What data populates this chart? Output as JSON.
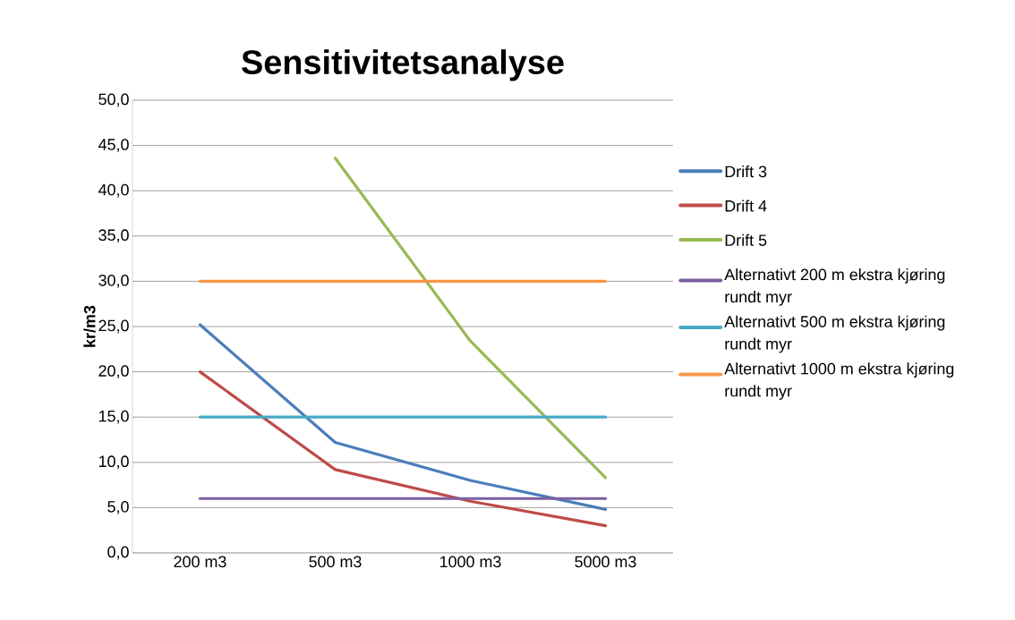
{
  "chart_data": {
    "type": "line",
    "title": "Sensitivitetsanalyse",
    "ylabel": "kr/m3",
    "categories": [
      "200 m3",
      "500 m3",
      "1000 m3",
      "5000 m3"
    ],
    "series": [
      {
        "name": "Drift 3",
        "color": "#4a7ebb",
        "values": [
          25.2,
          12.2,
          8.0,
          4.8
        ]
      },
      {
        "name": "Drift 4",
        "color": "#be4b48",
        "values": [
          20.0,
          9.2,
          5.7,
          3.0
        ]
      },
      {
        "name": "Drift 5",
        "color": "#98b954",
        "values": [
          null,
          43.6,
          23.4,
          8.3
        ]
      },
      {
        "name": "Alternativt 200 m ekstra kjøring rundt myr",
        "color": "#7d5fa0",
        "values": [
          6.0,
          6.0,
          6.0,
          6.0
        ]
      },
      {
        "name": "Alternativt 500 m ekstra kjøring rundt myr",
        "color": "#46aac5",
        "values": [
          15.0,
          15.0,
          15.0,
          15.0
        ]
      },
      {
        "name": "Alternativt 1000 m ekstra kjøring rundt myr",
        "color": "#f79646",
        "values": [
          30.0,
          30.0,
          30.0,
          30.0
        ]
      }
    ],
    "ylim": [
      0,
      50
    ],
    "yticks": [
      {
        "value": 0,
        "label": "0,0"
      },
      {
        "value": 5,
        "label": "5,0"
      },
      {
        "value": 10,
        "label": "10,0"
      },
      {
        "value": 15,
        "label": "15,0"
      },
      {
        "value": 20,
        "label": "20,0"
      },
      {
        "value": 25,
        "label": "25,0"
      },
      {
        "value": 30,
        "label": "30,0"
      },
      {
        "value": 35,
        "label": "35,0"
      },
      {
        "value": 40,
        "label": "40,0"
      },
      {
        "value": 45,
        "label": "45,0"
      },
      {
        "value": 50,
        "label": "50,0"
      }
    ],
    "grid": "y",
    "legend": "right",
    "marker": "none",
    "line_style": "solid"
  }
}
